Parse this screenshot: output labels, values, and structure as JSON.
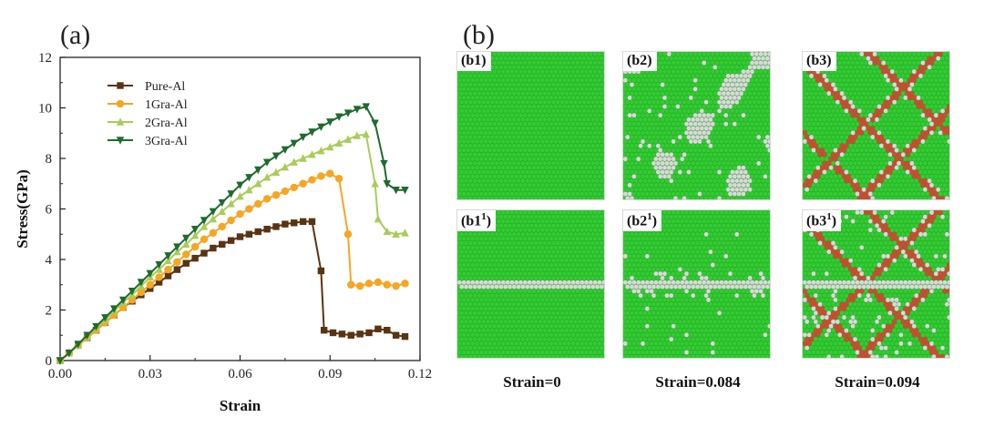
{
  "panel_a": {
    "letter": "(a)"
  },
  "panel_b": {
    "letter": "(b)",
    "tiles": [
      {
        "name": "b1",
        "label": "(b1)",
        "defects": "none",
        "band": false
      },
      {
        "name": "b2",
        "label": "(b2)",
        "defects": "scattered",
        "band": false
      },
      {
        "name": "b3",
        "label": "(b3)",
        "defects": "slip",
        "band": false
      },
      {
        "name": "b1-1",
        "label": "(b1",
        "sup": "1",
        "close": ")",
        "defects": "none",
        "band": true
      },
      {
        "name": "b2-1",
        "label": "(b2",
        "sup": "1",
        "close": ")",
        "defects": "light",
        "band": true
      },
      {
        "name": "b3-1",
        "label": "(b3",
        "sup": "1",
        "close": ")",
        "defects": "heavy",
        "band": true
      }
    ],
    "captions": [
      "Strain=0",
      "Strain=0.084",
      "Strain=0.094"
    ],
    "colors": {
      "fcc": "#33cc33",
      "other": "#d9d9d9",
      "hcp": "#dd4433"
    }
  },
  "chart_data": {
    "type": "line",
    "xlabel": "Strain",
    "ylabel": "Stress(GPa)",
    "xlim": [
      0,
      0.12
    ],
    "ylim": [
      0,
      12
    ],
    "xticks": [
      "0.00",
      "0.03",
      "0.06",
      "0.09",
      "0.12"
    ],
    "yticks": [
      "0",
      "2",
      "4",
      "6",
      "8",
      "10",
      "12"
    ],
    "legend_position": "top-left",
    "series": [
      {
        "name": "Pure-Al",
        "color": "#5a3312",
        "marker": "square",
        "x": [
          0,
          0.003,
          0.006,
          0.009,
          0.012,
          0.015,
          0.018,
          0.021,
          0.024,
          0.027,
          0.03,
          0.033,
          0.036,
          0.039,
          0.042,
          0.045,
          0.048,
          0.051,
          0.054,
          0.057,
          0.06,
          0.063,
          0.066,
          0.069,
          0.072,
          0.075,
          0.078,
          0.081,
          0.084,
          0.087,
          0.088,
          0.091,
          0.094,
          0.097,
          0.1,
          0.103,
          0.106,
          0.109,
          0.112,
          0.115
        ],
        "y": [
          0,
          0.3,
          0.6,
          0.9,
          1.2,
          1.5,
          1.8,
          2.1,
          2.35,
          2.6,
          2.85,
          3.1,
          3.35,
          3.6,
          3.85,
          4.05,
          4.25,
          4.45,
          4.6,
          4.75,
          4.9,
          5.0,
          5.1,
          5.2,
          5.3,
          5.4,
          5.45,
          5.5,
          5.5,
          3.55,
          1.2,
          1.1,
          1.05,
          1.0,
          1.05,
          1.1,
          1.25,
          1.2,
          1.0,
          0.95
        ]
      },
      {
        "name": "1Gra-Al",
        "color": "#f5a623",
        "marker": "circle",
        "x": [
          0,
          0.003,
          0.006,
          0.009,
          0.012,
          0.015,
          0.018,
          0.021,
          0.024,
          0.027,
          0.03,
          0.033,
          0.036,
          0.039,
          0.042,
          0.045,
          0.048,
          0.051,
          0.054,
          0.057,
          0.06,
          0.063,
          0.066,
          0.069,
          0.072,
          0.075,
          0.078,
          0.081,
          0.084,
          0.087,
          0.09,
          0.093,
          0.096,
          0.097,
          0.1,
          0.103,
          0.106,
          0.109,
          0.112,
          0.115
        ],
        "y": [
          0,
          0.3,
          0.6,
          0.9,
          1.2,
          1.5,
          1.8,
          2.1,
          2.4,
          2.7,
          3.0,
          3.3,
          3.6,
          3.9,
          4.2,
          4.5,
          4.8,
          5.05,
          5.3,
          5.55,
          5.8,
          6.0,
          6.2,
          6.4,
          6.55,
          6.7,
          6.85,
          7.0,
          7.15,
          7.3,
          7.4,
          7.2,
          5.0,
          3.0,
          2.95,
          3.05,
          3.1,
          3.0,
          2.95,
          3.05
        ]
      },
      {
        "name": "2Gra-Al",
        "color": "#a8cc5a",
        "marker": "triangle-up",
        "x": [
          0,
          0.003,
          0.006,
          0.009,
          0.012,
          0.015,
          0.018,
          0.021,
          0.024,
          0.027,
          0.03,
          0.033,
          0.036,
          0.039,
          0.042,
          0.045,
          0.048,
          0.051,
          0.054,
          0.057,
          0.06,
          0.063,
          0.066,
          0.069,
          0.072,
          0.075,
          0.078,
          0.081,
          0.084,
          0.087,
          0.09,
          0.093,
          0.096,
          0.099,
          0.102,
          0.105,
          0.106,
          0.109,
          0.112,
          0.115
        ],
        "y": [
          0,
          0.3,
          0.6,
          0.95,
          1.3,
          1.6,
          1.95,
          2.3,
          2.6,
          2.95,
          3.3,
          3.6,
          3.95,
          4.3,
          4.6,
          4.95,
          5.3,
          5.6,
          5.9,
          6.2,
          6.5,
          6.75,
          7.0,
          7.25,
          7.45,
          7.65,
          7.85,
          8.0,
          8.15,
          8.3,
          8.45,
          8.6,
          8.75,
          8.9,
          8.95,
          7.0,
          5.6,
          5.1,
          5.0,
          5.05
        ]
      },
      {
        "name": "3Gra-Al",
        "color": "#1e6b2e",
        "marker": "triangle-down",
        "x": [
          0,
          0.003,
          0.006,
          0.009,
          0.012,
          0.015,
          0.018,
          0.021,
          0.024,
          0.027,
          0.03,
          0.033,
          0.036,
          0.039,
          0.042,
          0.045,
          0.048,
          0.051,
          0.054,
          0.057,
          0.06,
          0.063,
          0.066,
          0.069,
          0.072,
          0.075,
          0.078,
          0.081,
          0.084,
          0.087,
          0.09,
          0.093,
          0.096,
          0.099,
          0.102,
          0.105,
          0.108,
          0.109,
          0.112,
          0.115
        ],
        "y": [
          0,
          0.3,
          0.65,
          1.0,
          1.35,
          1.7,
          2.05,
          2.4,
          2.75,
          3.1,
          3.45,
          3.8,
          4.15,
          4.5,
          4.85,
          5.2,
          5.55,
          5.9,
          6.25,
          6.6,
          6.95,
          7.25,
          7.55,
          7.85,
          8.1,
          8.35,
          8.6,
          8.85,
          9.05,
          9.25,
          9.45,
          9.65,
          9.8,
          9.95,
          10.05,
          9.4,
          7.8,
          7.0,
          6.75,
          6.75
        ]
      }
    ]
  }
}
